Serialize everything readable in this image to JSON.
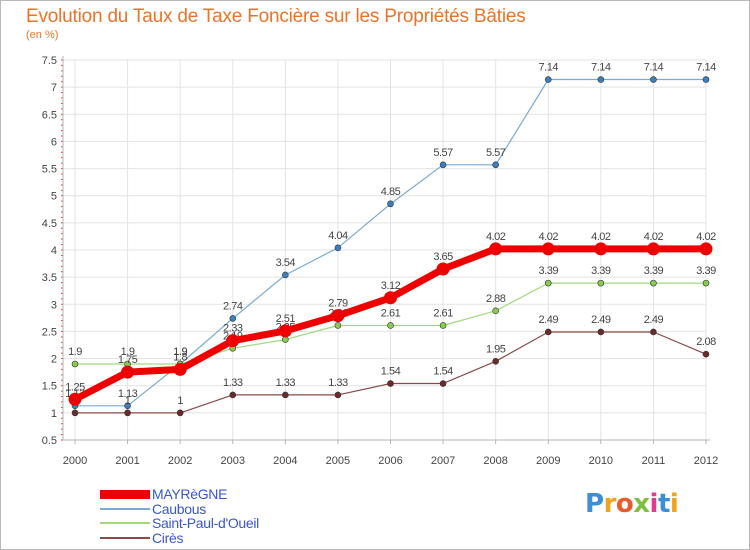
{
  "header": {
    "title": "Evolution du Taux de Taxe Foncière sur les Propriétés Bâties",
    "subtitle": "(en %)"
  },
  "logo": {
    "letters": [
      "P",
      "r",
      "o",
      "x",
      "i",
      "t",
      "i"
    ],
    "colors": [
      "#3b8fd6",
      "#f0a31f",
      "#e85b2a",
      "#7fbf3f",
      "#e23b8c",
      "#3b8fd6",
      "#f0a31f"
    ]
  },
  "colors": {
    "title": "#e8742a",
    "legend_text": "#3a56c8",
    "axis": "#b5b5b5",
    "grid": "#e3e3e3",
    "minor_tick": "#e04040"
  },
  "chart_data": {
    "type": "line",
    "x": [
      "2000",
      "2001",
      "2002",
      "2003",
      "2004",
      "2005",
      "2006",
      "2007",
      "2008",
      "2009",
      "2010",
      "2011",
      "2012"
    ],
    "ylim": [
      0.5,
      7.5
    ],
    "yticks": [
      "0.5",
      "1",
      "1.5",
      "2",
      "2.5",
      "3",
      "3.5",
      "4",
      "4.5",
      "5",
      "5.5",
      "6",
      "6.5",
      "7",
      "7.5"
    ],
    "grid": true,
    "legend_position": "bottom-left",
    "series": [
      {
        "name": "Caubous",
        "color": "#7aaad2",
        "marker": "#3a7fc0",
        "width": 1.2,
        "values": [
          1.13,
          1.13,
          1.9,
          2.74,
          3.54,
          4.04,
          4.85,
          5.57,
          5.57,
          7.14,
          7.14,
          7.14,
          7.14
        ],
        "labels": [
          "1.13",
          "1.13",
          "1.9",
          "2.74",
          "3.54",
          "4.04",
          "4.85",
          "5.57",
          "5.57",
          "7.14",
          "7.14",
          "7.14",
          "7.14"
        ]
      },
      {
        "name": "Saint-Paul-d'Oueil",
        "color": "#a2d97d",
        "marker": "#86cc4f",
        "width": 1.2,
        "values": [
          1.9,
          1.9,
          1.9,
          2.19,
          2.35,
          2.61,
          2.61,
          2.61,
          2.88,
          3.39,
          3.39,
          3.39,
          3.39
        ],
        "labels": [
          "1.9",
          "1.9",
          "1.9",
          "2.19",
          "2.35",
          "2.61",
          "2.61",
          "2.61",
          "2.88",
          "3.39",
          "3.39",
          "3.39",
          "3.39"
        ]
      },
      {
        "name": "Cirès",
        "color": "#8a4a4a",
        "marker": "#6b2b2b",
        "width": 1.2,
        "values": [
          1,
          1,
          1,
          1.33,
          1.33,
          1.33,
          1.54,
          1.54,
          1.95,
          2.49,
          2.49,
          2.49,
          2.08
        ],
        "labels": [
          "1",
          "1",
          "1",
          "1.33",
          "1.33",
          "1.33",
          "1.54",
          "1.54",
          "1.95",
          "2.49",
          "2.49",
          "2.49",
          "2.08"
        ]
      },
      {
        "name": "MAYRèGNE",
        "color": "#ee0000",
        "marker": "#ee0000",
        "width": 7,
        "values": [
          1.25,
          1.75,
          1.8,
          2.33,
          2.51,
          2.79,
          3.12,
          3.65,
          4.02,
          4.02,
          4.02,
          4.02,
          4.02
        ],
        "labels": [
          "1.25",
          "1.75",
          "1.8",
          "2.33",
          "2.51",
          "2.79",
          "3.12",
          "3.65",
          "4.02",
          "4.02",
          "4.02",
          "4.02",
          "4.02"
        ]
      }
    ],
    "legend_order": [
      "MAYRèGNE",
      "Caubous",
      "Saint-Paul-d'Oueil",
      "Cirès"
    ]
  }
}
